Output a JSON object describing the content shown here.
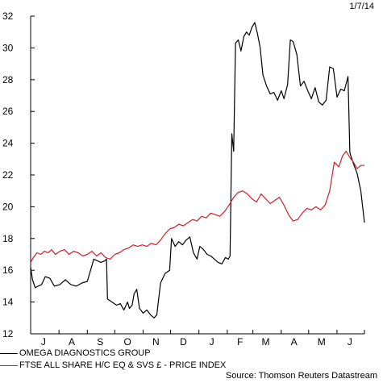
{
  "date_label": "1/7/14",
  "source": "Source: Thomson Reuters Datastream",
  "chart_data": {
    "type": "line",
    "title": "",
    "xlabel": "",
    "ylabel": "",
    "ylim": [
      12,
      32
    ],
    "yticks": [
      12,
      14,
      16,
      18,
      20,
      22,
      24,
      26,
      28,
      30,
      32
    ],
    "xlim": [
      "2013-07-01",
      "2014-07-01"
    ],
    "xtick_labels": [
      "J",
      "A",
      "S",
      "O",
      "N",
      "D",
      "J",
      "F",
      "M",
      "A",
      "M",
      "J"
    ],
    "xtick_dates": [
      "2013-07-15",
      "2013-08-15",
      "2013-09-15",
      "2013-10-15",
      "2013-11-15",
      "2013-12-15",
      "2014-01-15",
      "2014-02-15",
      "2014-03-15",
      "2014-04-15",
      "2014-05-15",
      "2014-06-15"
    ],
    "grid": false,
    "legend_position": "bottom-left",
    "series": [
      {
        "name": "OMEGA DIAGNOSTICS GROUP",
        "color": "#000000",
        "points": [
          [
            "2013-07-01",
            16.2
          ],
          [
            "2013-07-03",
            15.4
          ],
          [
            "2013-07-06",
            14.9
          ],
          [
            "2013-07-09",
            15.0
          ],
          [
            "2013-07-13",
            15.1
          ],
          [
            "2013-07-17",
            15.6
          ],
          [
            "2013-07-22",
            15.5
          ],
          [
            "2013-07-27",
            15.0
          ],
          [
            "2013-08-02",
            15.1
          ],
          [
            "2013-08-08",
            15.4
          ],
          [
            "2013-08-14",
            15.1
          ],
          [
            "2013-08-20",
            15.0
          ],
          [
            "2013-08-26",
            15.2
          ],
          [
            "2013-09-01",
            15.3
          ],
          [
            "2013-09-05",
            16.1
          ],
          [
            "2013-09-08",
            16.7
          ],
          [
            "2013-09-12",
            16.6
          ],
          [
            "2013-09-16",
            16.5
          ],
          [
            "2013-09-20",
            16.6
          ],
          [
            "2013-09-22",
            16.7
          ],
          [
            "2013-09-23",
            14.2
          ],
          [
            "2013-09-28",
            14.0
          ],
          [
            "2013-10-03",
            13.8
          ],
          [
            "2013-10-07",
            13.9
          ],
          [
            "2013-10-11",
            13.5
          ],
          [
            "2013-10-15",
            14.0
          ],
          [
            "2013-10-17",
            13.6
          ],
          [
            "2013-10-20",
            13.8
          ],
          [
            "2013-10-22",
            14.5
          ],
          [
            "2013-10-25",
            14.8
          ],
          [
            "2013-10-28",
            13.6
          ],
          [
            "2013-11-01",
            13.3
          ],
          [
            "2013-11-05",
            13.5
          ],
          [
            "2013-11-09",
            13.2
          ],
          [
            "2013-11-13",
            13.0
          ],
          [
            "2013-11-16",
            13.2
          ],
          [
            "2013-11-20",
            15.2
          ],
          [
            "2013-11-25",
            15.8
          ],
          [
            "2013-11-30",
            16.0
          ],
          [
            "2013-12-02",
            18.0
          ],
          [
            "2013-12-06",
            17.5
          ],
          [
            "2013-12-10",
            17.8
          ],
          [
            "2013-12-14",
            17.6
          ],
          [
            "2013-12-18",
            17.9
          ],
          [
            "2013-12-22",
            18.1
          ],
          [
            "2013-12-26",
            17.1
          ],
          [
            "2013-12-30",
            16.7
          ],
          [
            "2014-01-02",
            17.5
          ],
          [
            "2014-01-06",
            17.3
          ],
          [
            "2014-01-10",
            17.0
          ],
          [
            "2014-01-14",
            16.9
          ],
          [
            "2014-01-18",
            16.7
          ],
          [
            "2014-01-22",
            16.5
          ],
          [
            "2014-01-26",
            16.4
          ],
          [
            "2014-01-30",
            16.8
          ],
          [
            "2014-02-02",
            16.7
          ],
          [
            "2014-02-04",
            16.9
          ],
          [
            "2014-02-06",
            24.6
          ],
          [
            "2014-02-08",
            23.5
          ],
          [
            "2014-02-10",
            30.3
          ],
          [
            "2014-02-13",
            30.5
          ],
          [
            "2014-02-16",
            29.8
          ],
          [
            "2014-02-19",
            30.7
          ],
          [
            "2014-02-22",
            31.0
          ],
          [
            "2014-02-25",
            30.8
          ],
          [
            "2014-02-28",
            31.3
          ],
          [
            "2014-03-03",
            31.6
          ],
          [
            "2014-03-06",
            30.9
          ],
          [
            "2014-03-09",
            30.0
          ],
          [
            "2014-03-12",
            28.3
          ],
          [
            "2014-03-16",
            27.6
          ],
          [
            "2014-03-20",
            27.1
          ],
          [
            "2014-03-24",
            27.2
          ],
          [
            "2014-03-28",
            26.7
          ],
          [
            "2014-04-01",
            27.3
          ],
          [
            "2014-04-04",
            26.8
          ],
          [
            "2014-04-08",
            27.7
          ],
          [
            "2014-04-11",
            30.5
          ],
          [
            "2014-04-14",
            30.4
          ],
          [
            "2014-04-18",
            29.6
          ],
          [
            "2014-04-22",
            27.6
          ],
          [
            "2014-04-26",
            27.9
          ],
          [
            "2014-04-30",
            27.3
          ],
          [
            "2014-05-04",
            26.8
          ],
          [
            "2014-05-08",
            27.5
          ],
          [
            "2014-05-12",
            26.6
          ],
          [
            "2014-05-16",
            26.4
          ],
          [
            "2014-05-20",
            26.7
          ],
          [
            "2014-05-24",
            28.8
          ],
          [
            "2014-05-28",
            28.7
          ],
          [
            "2014-06-01",
            26.9
          ],
          [
            "2014-06-05",
            27.4
          ],
          [
            "2014-06-09",
            27.3
          ],
          [
            "2014-06-13",
            28.2
          ],
          [
            "2014-06-15",
            23.4
          ],
          [
            "2014-06-19",
            22.7
          ],
          [
            "2014-06-23",
            22.1
          ],
          [
            "2014-06-27",
            21.0
          ],
          [
            "2014-07-01",
            19.0
          ]
        ]
      },
      {
        "name": "FTSE ALL SHARE H/C EQ & SVS £ - PRICE INDEX",
        "color": "#d0202a",
        "points": [
          [
            "2013-07-01",
            16.5
          ],
          [
            "2013-07-04",
            16.8
          ],
          [
            "2013-07-08",
            17.1
          ],
          [
            "2013-07-12",
            17.0
          ],
          [
            "2013-07-16",
            17.2
          ],
          [
            "2013-07-20",
            17.1
          ],
          [
            "2013-07-24",
            17.3
          ],
          [
            "2013-07-28",
            17.0
          ],
          [
            "2013-08-02",
            17.2
          ],
          [
            "2013-08-07",
            17.3
          ],
          [
            "2013-08-12",
            17.0
          ],
          [
            "2013-08-17",
            17.2
          ],
          [
            "2013-08-22",
            17.1
          ],
          [
            "2013-08-27",
            16.9
          ],
          [
            "2013-09-01",
            17.0
          ],
          [
            "2013-09-06",
            17.2
          ],
          [
            "2013-09-11",
            16.9
          ],
          [
            "2013-09-16",
            17.1
          ],
          [
            "2013-09-21",
            16.8
          ],
          [
            "2013-09-26",
            16.7
          ],
          [
            "2013-10-01",
            17.0
          ],
          [
            "2013-10-06",
            17.1
          ],
          [
            "2013-10-11",
            17.3
          ],
          [
            "2013-10-16",
            17.4
          ],
          [
            "2013-10-21",
            17.6
          ],
          [
            "2013-10-26",
            17.5
          ],
          [
            "2013-10-31",
            17.6
          ],
          [
            "2013-11-05",
            17.5
          ],
          [
            "2013-11-10",
            17.7
          ],
          [
            "2013-11-15",
            17.6
          ],
          [
            "2013-11-20",
            17.9
          ],
          [
            "2013-11-25",
            18.3
          ],
          [
            "2013-11-30",
            18.6
          ],
          [
            "2013-12-05",
            18.7
          ],
          [
            "2013-12-10",
            18.9
          ],
          [
            "2013-12-15",
            18.8
          ],
          [
            "2013-12-20",
            19.0
          ],
          [
            "2013-12-25",
            19.2
          ],
          [
            "2013-12-30",
            19.1
          ],
          [
            "2014-01-04",
            19.4
          ],
          [
            "2014-01-09",
            19.3
          ],
          [
            "2014-01-14",
            19.6
          ],
          [
            "2014-01-19",
            19.5
          ],
          [
            "2014-01-24",
            19.4
          ],
          [
            "2014-01-29",
            19.7
          ],
          [
            "2014-02-03",
            20.1
          ],
          [
            "2014-02-08",
            20.6
          ],
          [
            "2014-02-13",
            20.9
          ],
          [
            "2014-02-18",
            21.0
          ],
          [
            "2014-02-23",
            20.8
          ],
          [
            "2014-02-28",
            20.5
          ],
          [
            "2014-03-05",
            20.3
          ],
          [
            "2014-03-10",
            20.8
          ],
          [
            "2014-03-15",
            20.5
          ],
          [
            "2014-03-20",
            20.2
          ],
          [
            "2014-03-25",
            20.4
          ],
          [
            "2014-03-30",
            20.6
          ],
          [
            "2014-04-04",
            20.1
          ],
          [
            "2014-04-09",
            19.5
          ],
          [
            "2014-04-14",
            19.1
          ],
          [
            "2014-04-19",
            19.2
          ],
          [
            "2014-04-24",
            19.6
          ],
          [
            "2014-04-29",
            19.9
          ],
          [
            "2014-05-04",
            19.8
          ],
          [
            "2014-05-09",
            20.0
          ],
          [
            "2014-05-14",
            19.8
          ],
          [
            "2014-05-19",
            20.1
          ],
          [
            "2014-05-24",
            21.0
          ],
          [
            "2014-05-29",
            22.8
          ],
          [
            "2014-06-03",
            22.5
          ],
          [
            "2014-06-07",
            23.2
          ],
          [
            "2014-06-11",
            23.5
          ],
          [
            "2014-06-15",
            23.1
          ],
          [
            "2014-06-19",
            22.8
          ],
          [
            "2014-06-23",
            22.4
          ],
          [
            "2014-06-27",
            22.6
          ],
          [
            "2014-07-01",
            22.6
          ]
        ]
      }
    ]
  }
}
